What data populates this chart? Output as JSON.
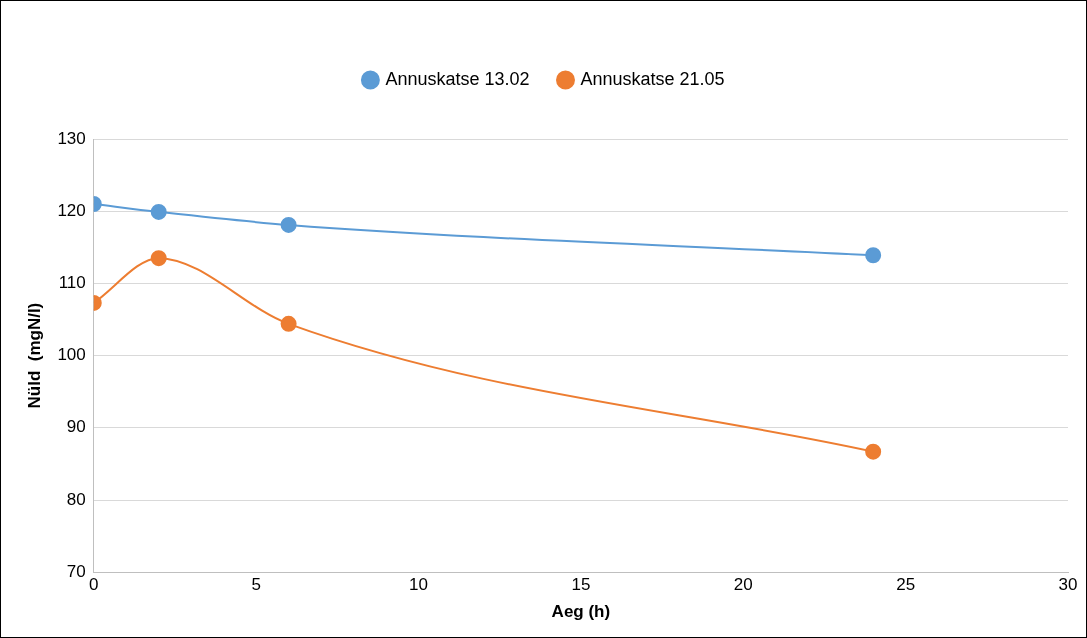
{
  "chart_data": {
    "type": "line",
    "xlabel": "Aeg (h)",
    "ylabel": "Nüld  (mgN/l)",
    "series": [
      {
        "name": "Annuskatse 13.02",
        "color": "#5b9bd5",
        "x": [
          0,
          2,
          6,
          24
        ],
        "values": [
          121.0,
          119.9,
          118.1,
          113.9
        ]
      },
      {
        "name": "Annuskatse 21.05",
        "color": "#ed7d31",
        "x": [
          0,
          2,
          6,
          24
        ],
        "values": [
          107.3,
          113.5,
          104.4,
          86.7
        ]
      }
    ],
    "xlim": [
      0,
      30
    ],
    "xticks": [
      0,
      5,
      10,
      15,
      20,
      25,
      30
    ],
    "ylim": [
      70,
      130
    ],
    "yticks": [
      70,
      80,
      90,
      100,
      110,
      120,
      130
    ],
    "grid": "y",
    "legend": "top",
    "marker": "circle",
    "line_style": "solid"
  }
}
